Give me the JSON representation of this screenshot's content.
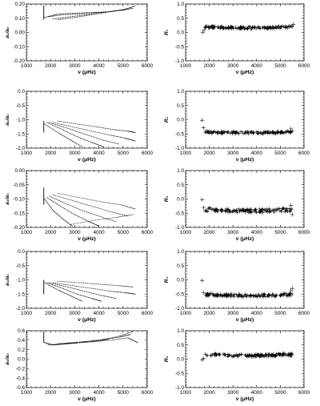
{
  "chart_data": [
    {
      "type": "scatter",
      "id": "left-1",
      "column": "left",
      "row": 0,
      "ylabel": "a₁/a₀",
      "xlabel": "ν (μHz)",
      "xlim": [
        1000,
        6000
      ],
      "ylim": [
        -0.2,
        0.2
      ],
      "xticks": [
        "1000",
        "2000",
        "3000",
        "4000",
        "5000",
        "6000"
      ],
      "yticks": [
        "-0.20",
        "-0.10",
        "0.00",
        "0.10",
        "0.20"
      ],
      "marker": "dot",
      "vline": {
        "x": 1720,
        "y1": 0.09,
        "y2": 0.19
      },
      "series": [
        {
          "x": [
            1750,
            2300,
            3000,
            3700,
            4300
          ],
          "y": [
            0.105,
            0.13,
            0.135,
            0.14,
            0.14
          ]
        },
        {
          "x": [
            1900,
            2500,
            3200,
            3900,
            4600,
            5100
          ],
          "y": [
            0.11,
            0.125,
            0.13,
            0.14,
            0.15,
            0.16
          ]
        },
        {
          "x": [
            2100,
            2800,
            3500,
            4200,
            4900,
            5400
          ],
          "y": [
            0.095,
            0.11,
            0.125,
            0.14,
            0.155,
            0.17
          ]
        },
        {
          "x": [
            2300,
            3000,
            3700,
            4400,
            5000,
            5500
          ],
          "y": [
            0.09,
            0.105,
            0.125,
            0.145,
            0.16,
            0.185
          ]
        }
      ]
    },
    {
      "type": "scatter",
      "id": "right-1",
      "column": "right",
      "row": 0,
      "ylabel": "R₁",
      "xlabel": "ν (μHz)",
      "xlim": [
        1000,
        6000
      ],
      "ylim": [
        -1.0,
        1.0
      ],
      "xticks": [
        "1000",
        "2000",
        "3000",
        "4000",
        "5000",
        "6000"
      ],
      "yticks": [
        "-1.0",
        "-0.5",
        "0.0",
        "0.5",
        "1.0"
      ],
      "marker": "plus",
      "band": {
        "x0": 1800,
        "x1": 5500,
        "center": 0.16,
        "curve": 0.04,
        "spread": 0.04
      },
      "outliers": {
        "x": [
          1720,
          1780,
          5500,
          5550
        ],
        "y": [
          0.0,
          0.08,
          0.22,
          0.28
        ]
      }
    },
    {
      "type": "scatter",
      "id": "left-2",
      "column": "left",
      "row": 1,
      "ylabel": "a₂/a₀",
      "xlabel": "ν (μHz)",
      "xlim": [
        1000,
        6000
      ],
      "ylim": [
        -2.0,
        0.0
      ],
      "xticks": [
        "1000",
        "2000",
        "3000",
        "4000",
        "5000",
        "6000"
      ],
      "yticks": [
        "-2.0",
        "-1.5",
        "-1.0",
        "-0.5",
        "0.0"
      ],
      "marker": "dot",
      "vline": {
        "x": 1720,
        "y1": -1.45,
        "y2": -1.05
      },
      "series": [
        {
          "x": [
            1750,
            2300,
            2800,
            3300
          ],
          "y": [
            -1.15,
            -1.45,
            -1.7,
            -1.95
          ]
        },
        {
          "x": [
            1850,
            2500,
            3100,
            3700,
            4200
          ],
          "y": [
            -1.1,
            -1.35,
            -1.6,
            -1.8,
            -1.95
          ]
        },
        {
          "x": [
            1950,
            2700,
            3400,
            4100,
            4800
          ],
          "y": [
            -1.1,
            -1.3,
            -1.5,
            -1.7,
            -1.85
          ]
        },
        {
          "x": [
            2100,
            2900,
            3700,
            4500,
            5100,
            5500
          ],
          "y": [
            -1.1,
            -1.25,
            -1.4,
            -1.55,
            -1.65,
            -1.75
          ]
        },
        {
          "x": [
            2300,
            3100,
            3900,
            4600,
            5200,
            5500
          ],
          "y": [
            -1.05,
            -1.15,
            -1.25,
            -1.35,
            -1.4,
            -1.45
          ]
        }
      ]
    },
    {
      "type": "scatter",
      "id": "right-2",
      "column": "right",
      "row": 1,
      "ylabel": "R₂",
      "xlabel": "ν (μHz)",
      "xlim": [
        1000,
        6000
      ],
      "ylim": [
        -1.0,
        1.0
      ],
      "xticks": [
        "1000",
        "2000",
        "3000",
        "4000",
        "5000",
        "6000"
      ],
      "yticks": [
        "-1.0",
        "-0.5",
        "0.0",
        "0.5",
        "1.0"
      ],
      "marker": "plus",
      "band": {
        "x0": 1800,
        "x1": 5500,
        "center": -0.46,
        "curve": 0.03,
        "spread": 0.04
      },
      "outliers": {
        "x": [
          1700,
          1750,
          5450,
          5500
        ],
        "y": [
          -0.02,
          -0.28,
          -0.32,
          -0.4
        ]
      }
    },
    {
      "type": "scatter",
      "id": "left-3",
      "column": "left",
      "row": 2,
      "ylabel": "a₃/a₀",
      "xlabel": "ν (μHz)",
      "xlim": [
        1000,
        6000
      ],
      "ylim": [
        -0.2,
        0.0
      ],
      "xticks": [
        "1000",
        "2000",
        "3000",
        "4000",
        "5000",
        "6000"
      ],
      "yticks": [
        "-0.20",
        "-0.15",
        "-0.10",
        "-0.05",
        "0.00"
      ],
      "marker": "dot",
      "vline": {
        "x": 1720,
        "y1": -0.12,
        "y2": -0.06
      },
      "series": [
        {
          "x": [
            1750,
            2100,
            2500,
            2900
          ],
          "y": [
            -0.1,
            -0.14,
            -0.17,
            -0.195
          ]
        },
        {
          "x": [
            1850,
            2400,
            3000,
            3600,
            4000
          ],
          "y": [
            -0.095,
            -0.125,
            -0.155,
            -0.18,
            -0.195
          ]
        },
        {
          "x": [
            1950,
            2600,
            3300,
            4000,
            4700
          ],
          "y": [
            -0.09,
            -0.115,
            -0.14,
            -0.16,
            -0.18
          ]
        },
        {
          "x": [
            2100,
            2900,
            3700,
            4500,
            5200
          ],
          "y": [
            -0.085,
            -0.105,
            -0.125,
            -0.145,
            -0.16
          ]
        },
        {
          "x": [
            2300,
            3200,
            4100,
            4900,
            5500
          ],
          "y": [
            -0.08,
            -0.095,
            -0.11,
            -0.12,
            -0.135
          ]
        },
        {
          "x": [
            2800,
            3800,
            4700,
            5400
          ],
          "y": [
            -0.19,
            -0.175,
            -0.165,
            -0.155
          ]
        }
      ]
    },
    {
      "type": "scatter",
      "id": "right-3",
      "column": "right",
      "row": 2,
      "ylabel": "R₃",
      "xlabel": "ν (μHz)",
      "xlim": [
        1000,
        6000
      ],
      "ylim": [
        -1.0,
        1.0
      ],
      "xticks": [
        "1000",
        "2000",
        "3000",
        "4000",
        "5000",
        "6000"
      ],
      "yticks": [
        "-1.0",
        "-0.5",
        "0.0",
        "0.5",
        "1.0"
      ],
      "marker": "plus",
      "band": {
        "x0": 1800,
        "x1": 5500,
        "center": -0.42,
        "curve": 0.05,
        "spread": 0.07
      },
      "outliers": {
        "x": [
          1700,
          1760,
          5450,
          5500
        ],
        "y": [
          -0.02,
          -0.3,
          -0.22,
          -0.55
        ]
      }
    },
    {
      "type": "scatter",
      "id": "left-4",
      "column": "left",
      "row": 3,
      "ylabel": "a₄/a₀",
      "xlabel": "ν (μHz)",
      "xlim": [
        1000,
        6000
      ],
      "ylim": [
        -2.0,
        0.0
      ],
      "xticks": [
        "1000",
        "2000",
        "3000",
        "4000",
        "5000",
        "6000"
      ],
      "yticks": [
        "-2.0",
        "-1.5",
        "-1.0",
        "-0.5",
        "0.0"
      ],
      "marker": "dot",
      "vline": {
        "x": 1720,
        "y1": -1.5,
        "y2": -1.0
      },
      "series": [
        {
          "x": [
            1750,
            2300,
            2800,
            3300
          ],
          "y": [
            -1.1,
            -1.35,
            -1.55,
            -1.75
          ]
        },
        {
          "x": [
            1850,
            2500,
            3100,
            3700,
            4100
          ],
          "y": [
            -1.1,
            -1.3,
            -1.5,
            -1.65,
            -1.75
          ]
        },
        {
          "x": [
            1950,
            2700,
            3400,
            4100,
            4700
          ],
          "y": [
            -1.1,
            -1.25,
            -1.4,
            -1.55,
            -1.65
          ]
        },
        {
          "x": [
            2100,
            2900,
            3700,
            4500,
            5100,
            5500
          ],
          "y": [
            -1.1,
            -1.2,
            -1.3,
            -1.4,
            -1.45,
            -1.5
          ]
        },
        {
          "x": [
            2300,
            3200,
            4000,
            4800,
            5400
          ],
          "y": [
            -1.05,
            -1.1,
            -1.15,
            -1.2,
            -1.25
          ]
        }
      ]
    },
    {
      "type": "scatter",
      "id": "right-4",
      "column": "right",
      "row": 3,
      "ylabel": "R₄",
      "xlabel": "ν (μHz)",
      "xlim": [
        1000,
        6000
      ],
      "ylim": [
        -1.0,
        1.0
      ],
      "xticks": [
        "1000",
        "2000",
        "3000",
        "4000",
        "5000",
        "6000"
      ],
      "yticks": [
        "-1.0",
        "-0.5",
        "0.0",
        "0.5",
        "1.0"
      ],
      "marker": "plus",
      "band": {
        "x0": 1800,
        "x1": 5500,
        "center": -0.55,
        "curve": 0.04,
        "spread": 0.05
      },
      "outliers": {
        "x": [
          1700,
          1750,
          5450,
          5500
        ],
        "y": [
          -0.02,
          -0.45,
          -0.38,
          -0.3
        ]
      }
    },
    {
      "type": "scatter",
      "id": "left-5",
      "column": "left",
      "row": 4,
      "ylabel": "a₅/a₀",
      "xlabel": "ν (μHz)",
      "xlim": [
        1000,
        6000
      ],
      "ylim": [
        -0.6,
        0.6
      ],
      "xticks": [
        "1000",
        "2000",
        "3000",
        "4000",
        "5000",
        "6000"
      ],
      "yticks": [
        "-0.6",
        "-0.4",
        "-0.2",
        "0.0",
        "0.2",
        "0.4",
        "0.6"
      ],
      "marker": "dot",
      "vline": {
        "x": 1720,
        "y1": 0.35,
        "y2": 0.58
      },
      "series": [
        {
          "x": [
            1750,
            2100,
            2600,
            3100
          ],
          "y": [
            0.35,
            0.3,
            0.32,
            0.34
          ]
        },
        {
          "x": [
            1900,
            2600,
            3300,
            3900,
            4400
          ],
          "y": [
            0.3,
            0.33,
            0.35,
            0.38,
            0.42
          ]
        },
        {
          "x": [
            2100,
            2900,
            3600,
            4300,
            4900,
            5300
          ],
          "y": [
            0.3,
            0.34,
            0.38,
            0.42,
            0.47,
            0.52
          ]
        },
        {
          "x": [
            2300,
            3200,
            4000,
            4800,
            5400
          ],
          "y": [
            0.33,
            0.36,
            0.4,
            0.48,
            0.58
          ]
        },
        {
          "x": [
            2700,
            3600,
            4500,
            5200,
            5600
          ],
          "y": [
            0.34,
            0.36,
            0.4,
            0.45,
            0.35
          ]
        }
      ]
    },
    {
      "type": "scatter",
      "id": "right-5",
      "column": "right",
      "row": 4,
      "ylabel": "R₅",
      "xlabel": "ν (μHz)",
      "xlim": [
        1000,
        6000
      ],
      "ylim": [
        -1.0,
        1.0
      ],
      "xticks": [
        "1000",
        "2000",
        "3000",
        "4000",
        "5000",
        "6000"
      ],
      "yticks": [
        "-1.0",
        "-0.5",
        "0.0",
        "0.5",
        "1.0"
      ],
      "marker": "plus",
      "band": {
        "x0": 1800,
        "x1": 5500,
        "center": 0.13,
        "curve": 0.04,
        "spread": 0.05
      },
      "outliers": {
        "x": [
          1700,
          1760,
          5450,
          5500
        ],
        "y": [
          -0.02,
          0.02,
          0.12,
          0.18
        ]
      }
    }
  ]
}
